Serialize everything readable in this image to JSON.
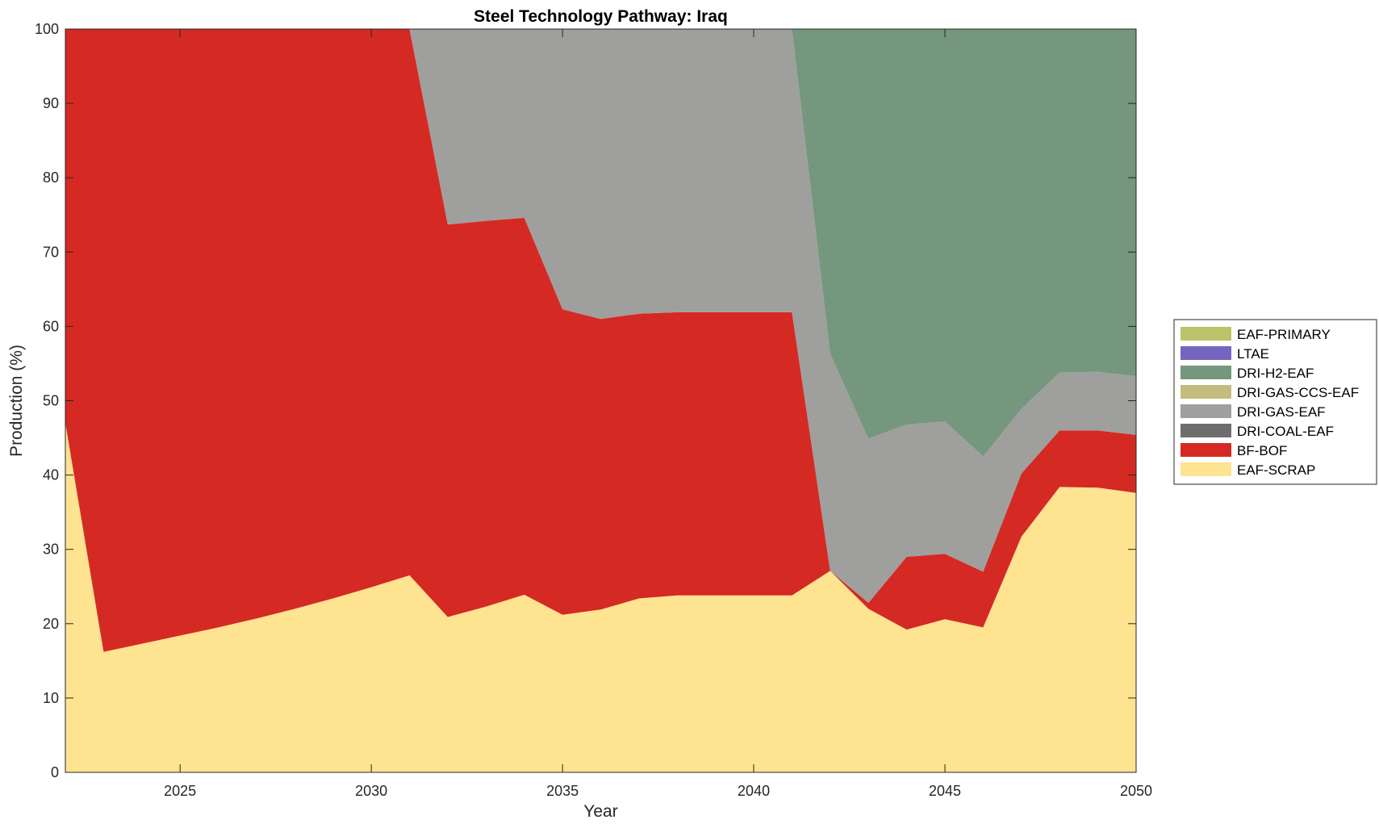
{
  "chart_data": {
    "type": "area",
    "stacked": true,
    "title": "Steel Technology Pathway: Iraq",
    "xlabel": "Year",
    "ylabel": "Production (%)",
    "xlim": [
      2022,
      2050
    ],
    "ylim": [
      0,
      100
    ],
    "xticks": [
      2025,
      2030,
      2035,
      2040,
      2045,
      2050
    ],
    "yticks": [
      0,
      10,
      20,
      30,
      40,
      50,
      60,
      70,
      80,
      90,
      100
    ],
    "grid": false,
    "legend_position": "right",
    "x": [
      2022,
      2023,
      2024,
      2025,
      2026,
      2027,
      2028,
      2029,
      2030,
      2031,
      2032,
      2033,
      2034,
      2035,
      2036,
      2037,
      2038,
      2039,
      2040,
      2041,
      2042,
      2043,
      2044,
      2045,
      2046,
      2047,
      2048,
      2049,
      2050
    ],
    "series": [
      {
        "name": "EAF-SCRAP",
        "color": "#FEE391",
        "values": [
          47.0,
          16.2,
          17.3,
          18.4,
          19.5,
          20.7,
          22.0,
          23.4,
          24.9,
          26.5,
          20.9,
          22.3,
          23.9,
          21.2,
          21.9,
          23.4,
          23.8,
          23.8,
          23.8,
          23.8,
          27.1,
          22.0,
          19.2,
          20.6,
          19.5,
          31.7,
          38.4,
          38.3,
          37.6
        ]
      },
      {
        "name": "BF-BOF",
        "color": "#D42A23",
        "values": [
          53.0,
          83.8,
          82.7,
          81.6,
          80.5,
          79.3,
          78.0,
          76.6,
          75.1,
          73.5,
          52.8,
          51.9,
          50.7,
          41.1,
          39.1,
          38.3,
          38.1,
          38.1,
          38.1,
          38.1,
          0.0,
          0.8,
          9.8,
          8.8,
          7.5,
          8.5,
          7.6,
          7.7,
          7.8
        ]
      },
      {
        "name": "DRI-COAL-EAF",
        "color": "#6E6E6E",
        "values": [
          0,
          0,
          0,
          0,
          0,
          0,
          0,
          0,
          0,
          0,
          0,
          0,
          0,
          0,
          0,
          0,
          0,
          0,
          0,
          0,
          0,
          0,
          0,
          0,
          0,
          0,
          0,
          0,
          0
        ]
      },
      {
        "name": "DRI-GAS-EAF",
        "color": "#9F9F9D",
        "values": [
          0,
          0,
          0,
          0,
          0,
          0,
          0,
          0,
          0,
          0,
          26.3,
          25.8,
          25.4,
          37.7,
          39.0,
          38.3,
          38.1,
          38.1,
          38.1,
          38.1,
          29.2,
          22.1,
          17.8,
          17.8,
          15.5,
          8.7,
          7.8,
          7.9,
          7.9
        ]
      },
      {
        "name": "DRI-GAS-CCS-EAF",
        "color": "#C4BC7E",
        "values": [
          0,
          0,
          0,
          0,
          0,
          0,
          0,
          0,
          0,
          0,
          0,
          0,
          0,
          0,
          0,
          0,
          0,
          0,
          0,
          0,
          0,
          0,
          0,
          0,
          0,
          0,
          0,
          0,
          0
        ]
      },
      {
        "name": "DRI-H2-EAF",
        "color": "#74977D",
        "values": [
          0,
          0,
          0,
          0,
          0,
          0,
          0,
          0,
          0,
          0,
          0,
          0,
          0,
          0,
          0,
          0,
          0,
          0,
          0,
          0,
          43.7,
          55.1,
          53.2,
          52.8,
          57.5,
          51.1,
          46.2,
          46.1,
          46.7
        ]
      },
      {
        "name": "LTAE",
        "color": "#7466BF",
        "values": [
          0,
          0,
          0,
          0,
          0,
          0,
          0,
          0,
          0,
          0,
          0,
          0,
          0,
          0,
          0,
          0,
          0,
          0,
          0,
          0,
          0,
          0,
          0,
          0,
          0,
          0,
          0,
          0,
          0
        ]
      },
      {
        "name": "EAF-PRIMARY",
        "color": "#BCC36A",
        "values": [
          0,
          0,
          0,
          0,
          0,
          0,
          0,
          0,
          0,
          0,
          0,
          0,
          0,
          0,
          0,
          0,
          0,
          0,
          0,
          0,
          0,
          0,
          0,
          0,
          0,
          0,
          0,
          0,
          0
        ]
      }
    ],
    "legend_order": [
      "EAF-PRIMARY",
      "LTAE",
      "DRI-H2-EAF",
      "DRI-GAS-CCS-EAF",
      "DRI-GAS-EAF",
      "DRI-COAL-EAF",
      "BF-BOF",
      "EAF-SCRAP"
    ]
  }
}
